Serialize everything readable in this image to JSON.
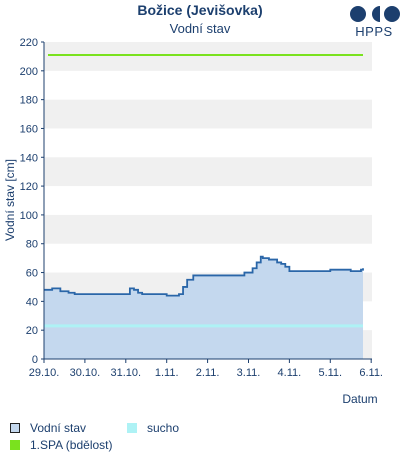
{
  "header": {
    "title": "Božice (Jevišovka)",
    "subtitle": "Vodní stav",
    "logo_text": "HPPS"
  },
  "colors": {
    "axis_text": "#1c3f6e",
    "series_line": "#2a66a8",
    "series_fill": "#c4d8ee",
    "spa_line": "#7ae21e",
    "sucho_line": "#aef2f5",
    "band": "#f0f0f0"
  },
  "legend": {
    "items": [
      {
        "label": "Vodní stav",
        "icon": "square-outline"
      },
      {
        "label": "sucho",
        "icon": "square-cyan"
      },
      {
        "label": "1.SPA (bdělost)",
        "icon": "square-green"
      }
    ]
  },
  "chart_data": {
    "type": "area",
    "title": "Vodní stav",
    "xlabel": "Datum",
    "ylabel": "Vodní stav [cm]",
    "ylim": [
      0,
      220
    ],
    "yticks": [
      0,
      20,
      40,
      60,
      80,
      100,
      120,
      140,
      160,
      180,
      200,
      220
    ],
    "xlim": [
      0,
      8.02
    ],
    "xtick_labels": [
      "29.10.",
      "30.10.",
      "31.10.",
      "1.11.",
      "2.11.",
      "3.11.",
      "4.11.",
      "5.11.",
      "6.11."
    ],
    "alternating_bands": true,
    "series": [
      {
        "name": "Vodní stav",
        "x": [
          0.0,
          0.1,
          0.2,
          0.35,
          0.4,
          0.55,
          0.6,
          0.75,
          0.85,
          1.0,
          1.3,
          1.6,
          1.8,
          1.95,
          2.1,
          2.2,
          2.3,
          2.4,
          2.55,
          2.75,
          3.0,
          3.2,
          3.3,
          3.4,
          3.5,
          3.65,
          3.8,
          4.0,
          4.4,
          4.8,
          4.9,
          5.1,
          5.2,
          5.3,
          5.35,
          5.5,
          5.7,
          5.8,
          5.9,
          6.0,
          6.5,
          6.9,
          7.0,
          7.3,
          7.5,
          7.65,
          7.75,
          7.8
        ],
        "values": [
          48,
          48,
          49,
          49,
          47,
          47,
          46,
          45,
          45,
          45,
          45,
          45,
          45,
          45,
          49,
          48,
          46,
          45,
          45,
          45,
          44,
          44,
          45,
          50,
          55,
          58,
          58,
          58,
          58,
          58,
          60,
          63,
          67,
          71,
          70,
          69,
          67,
          66,
          64,
          61,
          61,
          61,
          62,
          62,
          61,
          61,
          62,
          63
        ]
      },
      {
        "name": "sucho",
        "x": [
          0,
          7.8
        ],
        "values": [
          23,
          23
        ]
      },
      {
        "name": "1.SPA (bdělost)",
        "x": [
          0,
          7.8
        ],
        "values": [
          211,
          211
        ]
      }
    ]
  }
}
